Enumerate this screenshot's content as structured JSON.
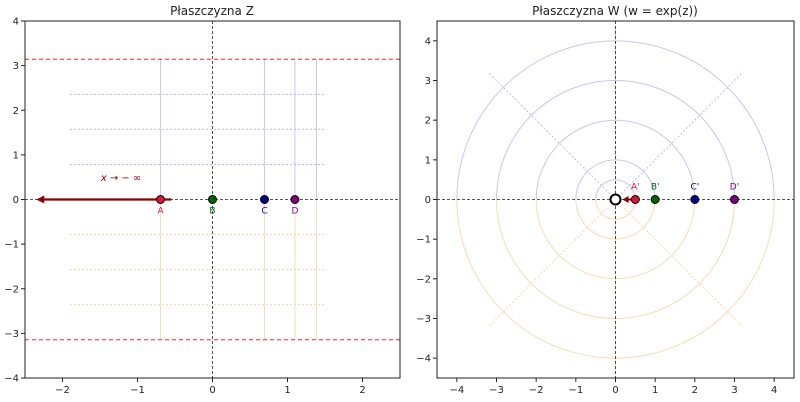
{
  "chart_data": [
    {
      "type": "scatter",
      "title": "Płaszczyzna Z",
      "xlabel": "",
      "ylabel": "",
      "xlim": [
        -2.5,
        2.5
      ],
      "ylim": [
        -4,
        4
      ],
      "xticks": [
        -2,
        -1,
        0,
        1,
        2
      ],
      "yticks": [
        -4,
        -3,
        -2,
        -1,
        0,
        1,
        2,
        3,
        4
      ],
      "grid": false,
      "points": [
        {
          "label": "A",
          "x": -0.693,
          "y": 0,
          "color": "#dc143c"
        },
        {
          "label": "B",
          "x": 0,
          "y": 0,
          "color": "#006400"
        },
        {
          "label": "C",
          "x": 0.693,
          "y": 0,
          "color": "#00008b"
        },
        {
          "label": "D",
          "x": 1.099,
          "y": 0,
          "color": "#800080"
        }
      ],
      "reference_lines": {
        "horizontal_dashed_red": [
          3.1416,
          -3.1416
        ],
        "vertical_faint": [
          -0.693,
          0.693,
          1.099,
          1.386
        ],
        "horizontal_dotted": [
          2.356,
          1.571,
          0.785,
          -0.785,
          -1.571,
          -2.356
        ],
        "dotted_x_range": [
          -1.9,
          1.5
        ]
      },
      "arrow": {
        "from_x": -0.55,
        "to_x": -2.35,
        "y": 0,
        "label": "x → − ∞",
        "color": "#8b0000"
      }
    },
    {
      "type": "scatter",
      "title": "Płaszczyzna W (w = exp(z))",
      "xlabel": "",
      "ylabel": "",
      "xlim": [
        -4.5,
        4.5
      ],
      "ylim": [
        -4.5,
        4.5
      ],
      "xticks": [
        -4,
        -3,
        -2,
        -1,
        0,
        1,
        2,
        3,
        4
      ],
      "yticks": [
        -4,
        -3,
        -2,
        -1,
        0,
        1,
        2,
        3,
        4
      ],
      "grid": false,
      "points": [
        {
          "label": "A'",
          "x": 0.5,
          "y": 0,
          "color": "#dc143c"
        },
        {
          "label": "B'",
          "x": 1,
          "y": 0,
          "color": "#006400"
        },
        {
          "label": "C'",
          "x": 2,
          "y": 0,
          "color": "#00008b"
        },
        {
          "label": "D'",
          "x": 3,
          "y": 0,
          "color": "#800080"
        }
      ],
      "origin_point": {
        "x": 0,
        "y": 0
      },
      "circles": [
        0.5,
        1,
        2,
        3,
        4
      ],
      "rays_deg": [
        45,
        90,
        135,
        225,
        270,
        315
      ],
      "ray_length": 4.5
    }
  ]
}
